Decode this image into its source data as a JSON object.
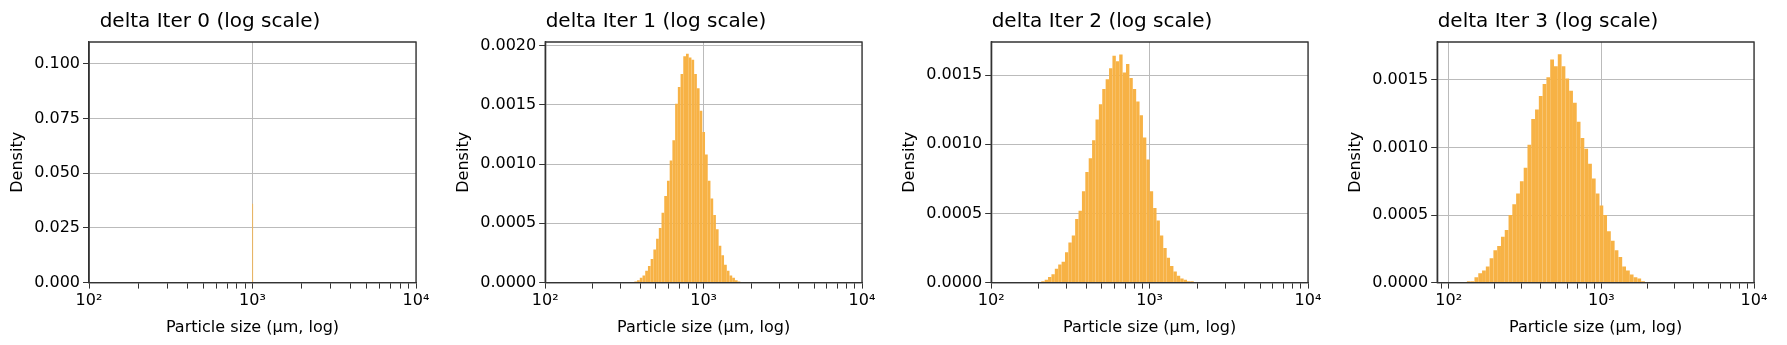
{
  "chart_data": [
    {
      "type": "histogram",
      "title": "delta Iter 0 (log scale)",
      "xlabel": "Particle size (µm, log)",
      "ylabel": "Density",
      "log": "x",
      "grid": true,
      "color": "#f7b245",
      "bins": [
        997,
        1003
      ],
      "values": [
        0.036
      ],
      "xlim": [
        100,
        10000
      ],
      "ylim": [
        0,
        0.11
      ],
      "xticks": [
        {
          "value": 100,
          "label": "10²"
        },
        {
          "value": 200,
          "label": null
        },
        {
          "value": 300,
          "label": null
        },
        {
          "value": 400,
          "label": null
        },
        {
          "value": 500,
          "label": null
        },
        {
          "value": 600,
          "label": null
        },
        {
          "value": 700,
          "label": null
        },
        {
          "value": 800,
          "label": null
        },
        {
          "value": 900,
          "label": null
        },
        {
          "value": 1000,
          "label": "10³"
        },
        {
          "value": 2000,
          "label": null
        },
        {
          "value": 3000,
          "label": null
        },
        {
          "value": 4000,
          "label": null
        },
        {
          "value": 5000,
          "label": null
        },
        {
          "value": 6000,
          "label": null
        },
        {
          "value": 7000,
          "label": null
        },
        {
          "value": 8000,
          "label": null
        },
        {
          "value": 9000,
          "label": null
        },
        {
          "value": 10000,
          "label": "10⁴"
        }
      ],
      "yticks": [
        {
          "value": 0,
          "label": "0.000"
        },
        {
          "value": 0.025,
          "label": "0.025"
        },
        {
          "value": 0.05,
          "label": "0.050"
        },
        {
          "value": 0.075,
          "label": "0.075"
        },
        {
          "value": 0.1,
          "label": "0.100"
        }
      ]
    },
    {
      "type": "histogram",
      "title": "delta Iter 1 (log scale)",
      "xlabel": "Particle size (µm, log)",
      "ylabel": "Density",
      "log": "x",
      "grid": true,
      "color": "#f7b245",
      "bins": [
        365.5,
        380.2,
        395.6,
        411.5,
        428.1,
        445.4,
        463.3,
        482.0,
        501.4,
        521.6,
        542.6,
        564.5,
        587.3,
        610.9,
        635.5,
        661.2,
        687.8,
        715.5,
        744.4,
        774.4,
        805.6,
        838.1,
        871.8,
        907.0,
        943.5,
        981.5,
        1021,
        1062,
        1105,
        1150,
        1196,
        1244,
        1294,
        1346,
        1401,
        1457,
        1516,
        1577,
        1641,
        1707
      ],
      "values": [
        1e-05,
        2e-05,
        4e-05,
        6e-05,
        0.0001,
        0.00014,
        0.0002,
        0.00028,
        0.00037,
        0.00046,
        0.00059,
        0.00073,
        0.00086,
        0.00103,
        0.0012,
        0.00151,
        0.00165,
        0.00176,
        0.00191,
        0.00193,
        0.0019,
        0.00188,
        0.00176,
        0.00164,
        0.00145,
        0.00127,
        0.00108,
        0.00086,
        0.00071,
        0.00057,
        0.00045,
        0.00031,
        0.00023,
        0.00015,
        0.0001,
        6e-05,
        4e-05,
        2e-05,
        1e-05
      ],
      "xlim": [
        100,
        10000
      ],
      "ylim": [
        0,
        0.00203
      ],
      "xticks": [
        {
          "value": 100,
          "label": "10²"
        },
        {
          "value": 200,
          "label": null
        },
        {
          "value": 300,
          "label": null
        },
        {
          "value": 400,
          "label": null
        },
        {
          "value": 500,
          "label": null
        },
        {
          "value": 600,
          "label": null
        },
        {
          "value": 700,
          "label": null
        },
        {
          "value": 800,
          "label": null
        },
        {
          "value": 900,
          "label": null
        },
        {
          "value": 1000,
          "label": "10³"
        },
        {
          "value": 2000,
          "label": null
        },
        {
          "value": 3000,
          "label": null
        },
        {
          "value": 4000,
          "label": null
        },
        {
          "value": 5000,
          "label": null
        },
        {
          "value": 6000,
          "label": null
        },
        {
          "value": 7000,
          "label": null
        },
        {
          "value": 8000,
          "label": null
        },
        {
          "value": 9000,
          "label": null
        },
        {
          "value": 10000,
          "label": "10⁴"
        }
      ],
      "yticks": [
        {
          "value": 0,
          "label": "0.0000"
        },
        {
          "value": 0.0005,
          "label": "0.0005"
        },
        {
          "value": 0.001,
          "label": "0.0010"
        },
        {
          "value": 0.0015,
          "label": "0.0015"
        },
        {
          "value": 0.002,
          "label": "0.0020"
        }
      ]
    },
    {
      "type": "histogram",
      "title": "delta Iter 2 (log scale)",
      "xlabel": "Particle size (µm, log)",
      "ylabel": "Density",
      "log": "x",
      "grid": true,
      "color": "#f7b245",
      "bins": [
        207.1,
        217.6,
        228.5,
        240.1,
        252.2,
        264.9,
        278.3,
        292.4,
        307.1,
        322.6,
        338.9,
        356.0,
        374.0,
        392.9,
        412.7,
        433.6,
        455.5,
        478.5,
        502.6,
        528.0,
        554.7,
        582.7,
        612.1,
        643.0,
        675.5,
        709.6,
        745.5,
        783.1,
        822.7,
        864.2,
        907.9,
        953.7,
        1002,
        1053,
        1106,
        1161,
        1220,
        1282,
        1346,
        1414,
        1486,
        1561,
        1640,
        1722,
        1809,
        1900
      ],
      "values": [
        1e-05,
        2e-05,
        4e-05,
        6e-05,
        0.0001,
        0.00013,
        0.00015,
        0.00022,
        0.00029,
        0.00034,
        0.00046,
        0.00052,
        0.00066,
        0.0008,
        0.0009,
        0.00103,
        0.00118,
        0.00129,
        0.0014,
        0.00147,
        0.00155,
        0.00164,
        0.0016,
        0.00165,
        0.00152,
        0.00158,
        0.00148,
        0.0014,
        0.00131,
        0.00121,
        0.00105,
        0.00089,
        0.00066,
        0.00054,
        0.00045,
        0.00034,
        0.00025,
        0.00018,
        0.00012,
        8e-05,
        5e-05,
        3e-05,
        2e-05,
        1e-05,
        1e-05
      ],
      "xlim": [
        100,
        10000
      ],
      "ylim": [
        0,
        0.00174
      ],
      "xticks": [
        {
          "value": 100,
          "label": "10²"
        },
        {
          "value": 200,
          "label": null
        },
        {
          "value": 300,
          "label": null
        },
        {
          "value": 400,
          "label": null
        },
        {
          "value": 500,
          "label": null
        },
        {
          "value": 600,
          "label": null
        },
        {
          "value": 700,
          "label": null
        },
        {
          "value": 800,
          "label": null
        },
        {
          "value": 900,
          "label": null
        },
        {
          "value": 1000,
          "label": "10³"
        },
        {
          "value": 2000,
          "label": null
        },
        {
          "value": 3000,
          "label": null
        },
        {
          "value": 4000,
          "label": null
        },
        {
          "value": 5000,
          "label": null
        },
        {
          "value": 6000,
          "label": null
        },
        {
          "value": 7000,
          "label": null
        },
        {
          "value": 8000,
          "label": null
        },
        {
          "value": 9000,
          "label": null
        },
        {
          "value": 10000,
          "label": "10⁴"
        }
      ],
      "yticks": [
        {
          "value": 0,
          "label": "0.0000"
        },
        {
          "value": 0.0005,
          "label": "0.0005"
        },
        {
          "value": 0.001,
          "label": "0.0010"
        },
        {
          "value": 0.0015,
          "label": "0.0015"
        }
      ]
    },
    {
      "type": "histogram",
      "title": "delta Iter 3 (log scale)",
      "xlabel": "Particle size (µm, log)",
      "ylabel": "Density",
      "log": "x",
      "grid": true,
      "color": "#f7b245",
      "bins": [
        131.5,
        139.2,
        147.4,
        156.1,
        165.3,
        175.0,
        185.3,
        196.2,
        207.7,
        219.9,
        232.8,
        246.5,
        261.0,
        276.4,
        292.6,
        309.8,
        328.0,
        347.3,
        367.7,
        389.3,
        412.2,
        436.5,
        462.2,
        489.4,
        518.2,
        548.6,
        580.9,
        615.0,
        651.2,
        689.5,
        730.0,
        772.9,
        818.4,
        866.5,
        917.5,
        971.4,
        1029,
        1089,
        1153,
        1221,
        1293,
        1369,
        1450,
        1535,
        1625,
        1721,
        1822,
        1929
      ],
      "values": [
        1e-05,
        1e-05,
        4e-05,
        7e-05,
        9e-05,
        0.00012,
        0.00018,
        0.00024,
        0.00027,
        0.00034,
        0.00039,
        0.0005,
        0.00058,
        0.00066,
        0.00075,
        0.00085,
        0.00102,
        0.00121,
        0.00128,
        0.00138,
        0.00147,
        0.00152,
        0.00165,
        0.0016,
        0.00169,
        0.0016,
        0.00151,
        0.00142,
        0.00133,
        0.00119,
        0.00107,
        0.00099,
        0.00088,
        0.00077,
        0.00066,
        0.00057,
        0.0005,
        0.00038,
        0.00031,
        0.00024,
        0.00019,
        0.00012,
        9e-05,
        6e-05,
        4e-05,
        3e-05,
        1e-05
      ],
      "xlim": [
        84,
        10000
      ],
      "ylim": [
        0,
        0.00178
      ],
      "xticks": [
        {
          "value": 90,
          "label": null
        },
        {
          "value": 100,
          "label": "10²"
        },
        {
          "value": 200,
          "label": null
        },
        {
          "value": 300,
          "label": null
        },
        {
          "value": 400,
          "label": null
        },
        {
          "value": 500,
          "label": null
        },
        {
          "value": 600,
          "label": null
        },
        {
          "value": 700,
          "label": null
        },
        {
          "value": 800,
          "label": null
        },
        {
          "value": 900,
          "label": null
        },
        {
          "value": 1000,
          "label": "10³"
        },
        {
          "value": 2000,
          "label": null
        },
        {
          "value": 3000,
          "label": null
        },
        {
          "value": 4000,
          "label": null
        },
        {
          "value": 5000,
          "label": null
        },
        {
          "value": 6000,
          "label": null
        },
        {
          "value": 7000,
          "label": null
        },
        {
          "value": 8000,
          "label": null
        },
        {
          "value": 9000,
          "label": null
        },
        {
          "value": 10000,
          "label": "10⁴"
        }
      ],
      "yticks": [
        {
          "value": 0,
          "label": "0.0000"
        },
        {
          "value": 0.0005,
          "label": "0.0005"
        },
        {
          "value": 0.001,
          "label": "0.0010"
        },
        {
          "value": 0.0015,
          "label": "0.0015"
        }
      ]
    }
  ]
}
